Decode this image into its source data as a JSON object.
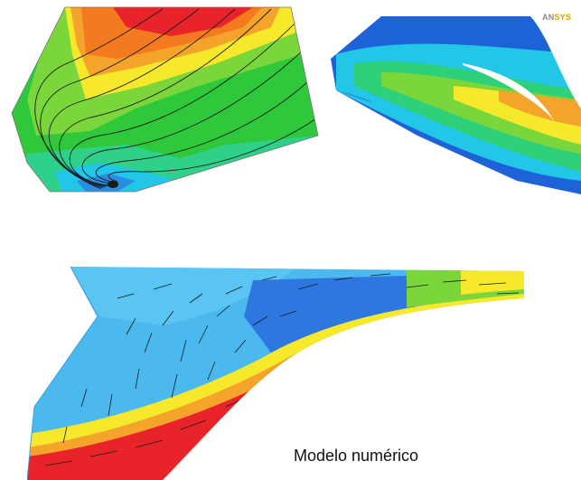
{
  "caption": "Modelo numérico",
  "logo": {
    "text_part": "AN",
    "accent_part": "SYS"
  },
  "colors": {
    "red": "#e8242a",
    "orange": "#f47a1f",
    "yellow": "#f6e82a",
    "green": "#2fc83a",
    "cyan": "#22c6e6",
    "blue": "#1e62d8",
    "logo_accent": "#d9a400"
  },
  "panels": [
    {
      "id": "contour-streamlines",
      "kind": "color-contour-with-streamlines"
    },
    {
      "id": "ansys-contour",
      "kind": "color-contour"
    },
    {
      "id": "vector-field",
      "kind": "color-contour-with-velocity-vectors"
    }
  ]
}
